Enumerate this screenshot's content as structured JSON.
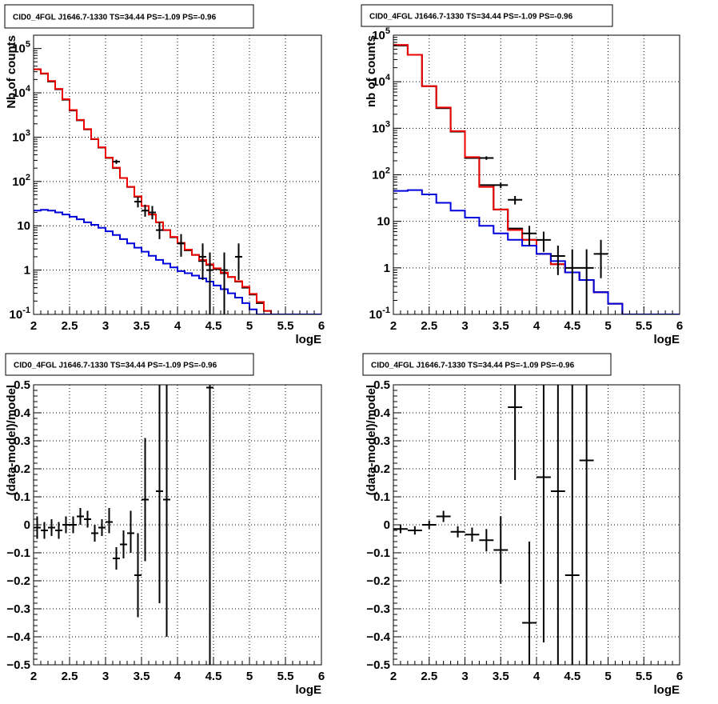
{
  "chart_data": [
    {
      "id": "counts-left",
      "type": "line",
      "title": "CID0_4FGL J1646.7-1330 TS=34.44 PS=-1.09 PS=-0.96",
      "xlabel": "logE",
      "ylabel": "Nb of counts",
      "yscale": "log",
      "xlim": [
        2,
        6
      ],
      "ylim": [
        0.1,
        200000
      ],
      "grid": true,
      "x_ticks": [
        2,
        2.5,
        3,
        3.5,
        4,
        4.5,
        5,
        5.5,
        6
      ],
      "x_tick_labels": [
        "2",
        "2.5",
        "3",
        "3.5",
        "4",
        "4.5",
        "5",
        "5.5",
        "6"
      ],
      "y_ticks": [
        0.1,
        1,
        10,
        100,
        1000,
        10000,
        100000
      ],
      "y_tick_labels": [
        {
          "base": "10",
          "exp": "-1"
        },
        {
          "base": "1",
          "exp": ""
        },
        {
          "base": "10",
          "exp": ""
        },
        {
          "base": "10",
          "exp": "2"
        },
        {
          "base": "10",
          "exp": "3"
        },
        {
          "base": "10",
          "exp": "4"
        },
        {
          "base": "10",
          "exp": "5"
        }
      ],
      "bin_edges": [
        2.0,
        2.1,
        2.2,
        2.3,
        2.4,
        2.5,
        2.6,
        2.7,
        2.8,
        2.9,
        3.0,
        3.1,
        3.2,
        3.3,
        3.4,
        3.5,
        3.6,
        3.7,
        3.8,
        3.9,
        4.0,
        4.1,
        4.2,
        4.3,
        4.4,
        4.5,
        4.6,
        4.7,
        4.8,
        4.9,
        5.0,
        5.1,
        5.2,
        5.3,
        5.4,
        5.5,
        5.6,
        5.7,
        5.8,
        5.9,
        6.0
      ],
      "series": [
        {
          "kind": "hist",
          "color": "#000000",
          "values": [
            34000,
            27000,
            18000,
            12000,
            7000,
            4000,
            2400,
            1500,
            900,
            580,
            340,
            200,
            120,
            75,
            45,
            28,
            18,
            12,
            8,
            5.5,
            4,
            2.8,
            2.2,
            1.6,
            1.3,
            1.05,
            0.85,
            0.7,
            0.55,
            0.4,
            0.28,
            0.18,
            0.12,
            0.1,
            0.1,
            0.1,
            0.1,
            0.1,
            0.1,
            0.1
          ]
        },
        {
          "kind": "hist",
          "color": "#ee0000",
          "values": [
            34000,
            27500,
            18500,
            12300,
            7200,
            4100,
            2450,
            1520,
            910,
            590,
            345,
            205,
            120,
            76,
            46,
            28,
            18,
            12,
            8,
            5.6,
            4.1,
            2.9,
            2.2,
            1.7,
            1.35,
            1.1,
            0.88,
            0.7,
            0.56,
            0.42,
            0.29,
            0.19,
            0.12,
            0.1,
            0.1,
            0.1,
            0.1,
            0.1,
            0.1,
            0.1
          ]
        },
        {
          "kind": "hist",
          "color": "#0000dd",
          "values": [
            22,
            23,
            22,
            20,
            18,
            16,
            14,
            12,
            10.5,
            9,
            7.5,
            6.2,
            5,
            4,
            3.2,
            2.6,
            2.1,
            1.7,
            1.4,
            1.15,
            0.95,
            0.85,
            0.75,
            0.65,
            0.55,
            0.45,
            0.37,
            0.3,
            0.24,
            0.18,
            0.13,
            0.1,
            0.1,
            0.1,
            0.1,
            0.1,
            0.1,
            0.1,
            0.1,
            0.1
          ]
        },
        {
          "kind": "points",
          "color": "#000000",
          "x": [
            3.15,
            3.45,
            3.55,
            3.65,
            3.75,
            4.05,
            4.35,
            4.45,
            4.65,
            4.85
          ],
          "xerr": 0.05,
          "y": [
            280,
            35,
            22,
            20,
            8,
            4,
            2,
            1,
            1,
            2
          ],
          "ylow": [
            250,
            26,
            16,
            14,
            5,
            2,
            0.6,
            0.1,
            0.1,
            0.6
          ],
          "yhigh": [
            310,
            45,
            30,
            28,
            12,
            6.5,
            4,
            2.5,
            2.5,
            4
          ]
        }
      ]
    },
    {
      "id": "counts-right",
      "type": "line",
      "title": "CID0_4FGL J1646.7-1330 TS=34.44 PS=-1.09 PS=-0.96",
      "xlabel": "logE",
      "ylabel": "nb of counts",
      "yscale": "log",
      "xlim": [
        2,
        6
      ],
      "ylim": [
        0.1,
        100000
      ],
      "grid": true,
      "x_ticks": [
        2,
        2.5,
        3,
        3.5,
        4,
        4.5,
        5,
        5.5,
        6
      ],
      "x_tick_labels": [
        "2",
        "2.5",
        "3",
        "3.5",
        "4",
        "4.5",
        "5",
        "5.5",
        "6"
      ],
      "y_ticks": [
        0.1,
        1,
        10,
        100,
        1000,
        10000,
        100000
      ],
      "y_tick_labels": [
        {
          "base": "10",
          "exp": "-1"
        },
        {
          "base": "1",
          "exp": ""
        },
        {
          "base": "10",
          "exp": ""
        },
        {
          "base": "10",
          "exp": "2"
        },
        {
          "base": "10",
          "exp": "3"
        },
        {
          "base": "10",
          "exp": "4"
        },
        {
          "base": "10",
          "exp": "5"
        }
      ],
      "bin_edges": [
        2.0,
        2.2,
        2.4,
        2.6,
        2.8,
        3.0,
        3.2,
        3.4,
        3.6,
        3.8,
        4.0,
        4.2,
        4.4,
        4.6,
        4.8,
        5.0,
        5.2,
        5.4,
        5.6,
        5.8,
        6.0
      ],
      "series": [
        {
          "kind": "hist",
          "color": "#000000",
          "values": [
            60000,
            38000,
            8000,
            2700,
            850,
            230,
            60,
            18,
            7,
            4,
            2,
            1.2,
            0.8,
            0.55,
            0.3,
            0.17,
            0.1,
            0.1,
            0.1,
            0.1
          ]
        },
        {
          "kind": "hist",
          "color": "#ee0000",
          "values": [
            62000,
            38000,
            8000,
            2800,
            870,
            240,
            55,
            18,
            6.5,
            4,
            2,
            1.2,
            0.8,
            0.55,
            0.3,
            0.17,
            0.1,
            0.1,
            0.1,
            0.1
          ]
        },
        {
          "kind": "hist",
          "color": "#0000dd",
          "values": [
            45,
            47,
            38,
            25,
            17,
            12,
            8,
            5.5,
            4,
            3,
            2,
            1.4,
            0.8,
            0.55,
            0.3,
            0.17,
            0.1,
            0.1,
            0.1,
            0.1
          ]
        },
        {
          "kind": "points",
          "color": "#000000",
          "x": [
            3.3,
            3.5,
            3.7,
            3.9,
            4.1,
            4.3,
            4.5,
            4.7,
            4.9
          ],
          "xerr": 0.1,
          "y": [
            230,
            60,
            29,
            5.5,
            4,
            1.8,
            1,
            1,
            2
          ],
          "ylow": [
            210,
            52,
            23,
            3,
            2.2,
            0.7,
            0.1,
            0.1,
            0.6
          ],
          "yhigh": [
            250,
            68,
            35,
            8,
            6,
            3,
            2.5,
            2.5,
            4
          ]
        }
      ]
    },
    {
      "id": "resid-left",
      "type": "scatter",
      "title": "CID0_4FGL J1646.7-1330 TS=34.44 PS=-1.09 PS=-0.96",
      "xlabel": "logE",
      "ylabel": "(data-model)/model",
      "yscale": "linear",
      "xlim": [
        2,
        6
      ],
      "ylim": [
        -0.5,
        0.5
      ],
      "grid": true,
      "x_ticks": [
        2,
        2.5,
        3,
        3.5,
        4,
        4.5,
        5,
        5.5,
        6
      ],
      "x_tick_labels": [
        "2",
        "2.5",
        "3",
        "3.5",
        "4",
        "4.5",
        "5",
        "5.5",
        "6"
      ],
      "y_ticks": [
        -0.5,
        -0.4,
        -0.3,
        -0.2,
        -0.1,
        0,
        0.1,
        0.2,
        0.3,
        0.4,
        0.5
      ],
      "y_tick_labels": [
        "−0.5",
        "−0.4",
        "−0.3",
        "−0.2",
        "−0.1",
        "0",
        "0.1",
        "0.2",
        "0.3",
        "0.4",
        "0.5"
      ],
      "series": [
        {
          "kind": "points",
          "color": "#000000",
          "x": [
            2.05,
            2.15,
            2.25,
            2.35,
            2.45,
            2.55,
            2.65,
            2.75,
            2.85,
            2.95,
            3.05,
            3.15,
            3.25,
            3.35,
            3.45,
            3.55,
            3.75,
            3.85,
            4.45
          ],
          "xerr": 0.05,
          "y": [
            -0.01,
            -0.02,
            -0.01,
            -0.02,
            0.0,
            0.0,
            0.03,
            0.02,
            -0.03,
            -0.01,
            0.01,
            -0.12,
            -0.07,
            -0.03,
            -0.18,
            0.09,
            0.12,
            0.09,
            0.49
          ],
          "ylow": [
            -0.05,
            -0.05,
            -0.04,
            -0.05,
            -0.03,
            -0.03,
            0.0,
            -0.01,
            -0.06,
            -0.04,
            -0.03,
            -0.16,
            -0.12,
            -0.1,
            -0.33,
            -0.13,
            -0.28,
            -0.4,
            -0.5
          ],
          "yhigh": [
            0.03,
            0.01,
            0.02,
            0.01,
            0.03,
            0.03,
            0.06,
            0.05,
            0.0,
            0.02,
            0.06,
            -0.08,
            -0.02,
            0.05,
            -0.03,
            0.31,
            0.5,
            0.5,
            0.5
          ]
        }
      ]
    },
    {
      "id": "resid-right",
      "type": "scatter",
      "title": "CID0_4FGL J1646.7-1330 TS=34.44 PS=-1.09 PS=-0.96",
      "xlabel": "logE",
      "ylabel": "(data-model)/model",
      "yscale": "linear",
      "xlim": [
        2,
        6
      ],
      "ylim": [
        -0.5,
        0.5
      ],
      "grid": true,
      "x_ticks": [
        2,
        2.5,
        3,
        3.5,
        4,
        4.5,
        5,
        5.5,
        6
      ],
      "x_tick_labels": [
        "2",
        "2.5",
        "3",
        "3.5",
        "4",
        "4.5",
        "5",
        "5.5",
        "6"
      ],
      "y_ticks": [
        -0.5,
        -0.4,
        -0.3,
        -0.2,
        -0.1,
        0,
        0.1,
        0.2,
        0.3,
        0.4,
        0.5
      ],
      "y_tick_labels": [
        "−0.5",
        "−0.4",
        "−0.3",
        "−0.2",
        "−0.1",
        "0",
        "0.1",
        "0.2",
        "0.3",
        "0.4",
        "0.5"
      ],
      "series": [
        {
          "kind": "points",
          "color": "#000000",
          "x": [
            2.1,
            2.3,
            2.5,
            2.7,
            2.9,
            3.1,
            3.3,
            3.5,
            3.7,
            3.9,
            4.1,
            4.3,
            4.5,
            4.7
          ],
          "xerr": 0.1,
          "y": [
            -0.015,
            -0.02,
            0.0,
            0.03,
            -0.025,
            -0.035,
            -0.055,
            -0.09,
            0.42,
            -0.35,
            0.17,
            0.12,
            -0.18,
            0.23
          ],
          "ylow": [
            -0.03,
            -0.035,
            -0.015,
            0.01,
            -0.045,
            -0.06,
            -0.095,
            -0.21,
            0.16,
            -0.5,
            -0.42,
            -0.5,
            -0.5,
            -0.5
          ],
          "yhigh": [
            0.0,
            -0.005,
            0.015,
            0.05,
            -0.005,
            -0.01,
            -0.015,
            0.03,
            0.5,
            -0.06,
            0.5,
            0.5,
            0.5,
            0.5
          ]
        }
      ]
    }
  ]
}
